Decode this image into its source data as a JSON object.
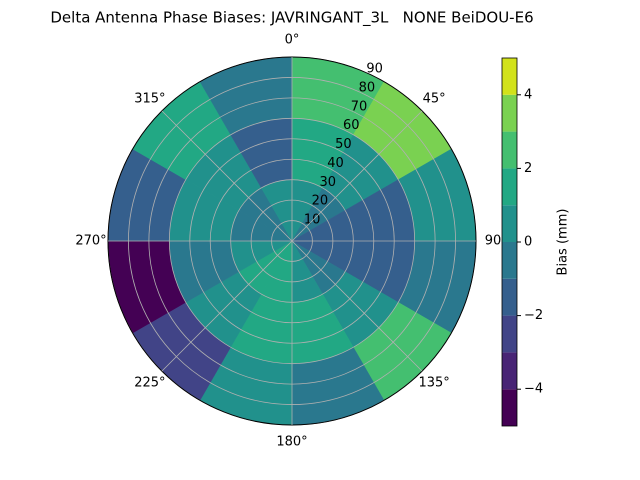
{
  "chart_data": {
    "type": "polar_contour",
    "title": "Delta Antenna Phase Biases: JAVRINGANT_3L   NONE BeiDOU-E6",
    "theta_ticks": [
      {
        "value": 0,
        "label": "0°"
      },
      {
        "value": 45,
        "label": "45°"
      },
      {
        "value": 90,
        "label": "90"
      },
      {
        "value": 135,
        "label": "135°"
      },
      {
        "value": 180,
        "label": "180°"
      },
      {
        "value": 225,
        "label": "225°"
      },
      {
        "value": 270,
        "label": "270°"
      },
      {
        "value": 315,
        "label": "315°"
      }
    ],
    "rlim": [
      0,
      90
    ],
    "rticks": [
      10,
      20,
      30,
      40,
      50,
      60,
      70,
      80,
      90
    ],
    "theta_bins": [
      0,
      30,
      60,
      90,
      120,
      150,
      180,
      210,
      240,
      270,
      300,
      330,
      360
    ],
    "r_bins": [
      0,
      30,
      60,
      90
    ],
    "values": [
      [
        0.5,
        1.5,
        2.5
      ],
      [
        -0.5,
        0.5,
        3.5
      ],
      [
        -1.5,
        -1.5,
        0.5
      ],
      [
        -1.5,
        -1.5,
        -0.5
      ],
      [
        -0.5,
        0.5,
        2.5
      ],
      [
        0.5,
        1.5,
        -0.5
      ],
      [
        1.5,
        1.5,
        0.5
      ],
      [
        1.5,
        0.5,
        -2.5
      ],
      [
        0.5,
        -0.5,
        -4.5
      ],
      [
        -0.5,
        0.5,
        -1.5
      ],
      [
        -0.5,
        0.5,
        1.5
      ],
      [
        0.5,
        -1.5,
        -0.5
      ]
    ],
    "levels": [
      -5,
      -4,
      -3,
      -2,
      -1,
      0,
      1,
      2,
      3,
      4,
      5
    ],
    "colors": [
      "#440154",
      "#482475",
      "#414487",
      "#355f8d",
      "#2a788e",
      "#21918c",
      "#22a884",
      "#44bf70",
      "#7ad151",
      "#d2e21b"
    ],
    "colorbar_label": "Bias (mm)",
    "colorbar_ticks": [
      {
        "value": -4,
        "label": "−4"
      },
      {
        "value": -2,
        "label": "−2"
      },
      0,
      2,
      4
    ],
    "grid": true
  }
}
